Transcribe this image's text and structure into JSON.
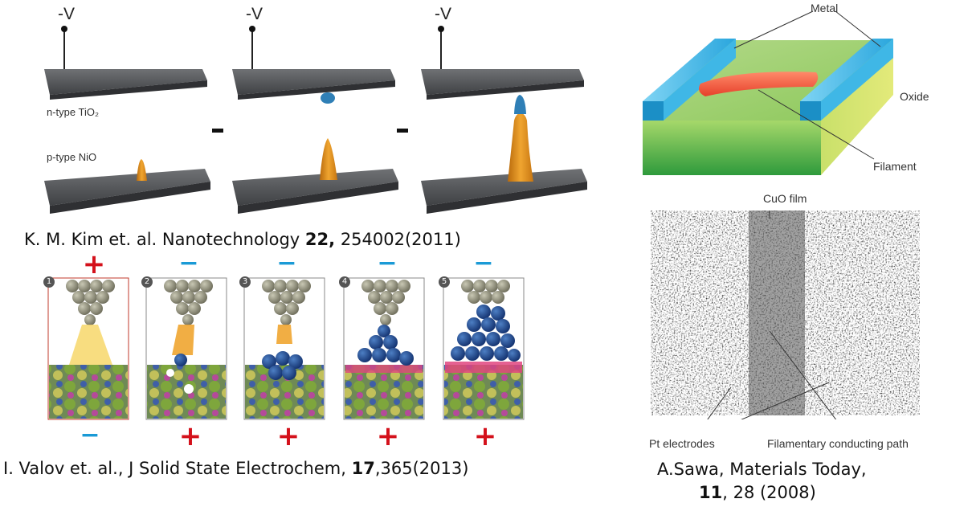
{
  "panel_kim": {
    "voltage_labels": [
      "-V",
      "-V",
      "-V"
    ],
    "layer_top": "n-type TiO₂",
    "layer_bottom": "p-type NiO",
    "citation": {
      "authors": "K. M. Kim et. al. Nanotechnology",
      "volume": "22,",
      "rest": "254002(2011)"
    }
  },
  "panel_valov": {
    "top_signs": [
      "+",
      "−",
      "−",
      "−",
      "−"
    ],
    "bottom_signs": [
      "−",
      "+",
      "+",
      "+",
      "+"
    ],
    "step_numbers": [
      "1",
      "2",
      "3",
      "4",
      "5"
    ],
    "citation": {
      "authors": "I. Valov et. al., J Solid State Electrochem,",
      "volume": "17",
      "rest": ",365(2013)"
    }
  },
  "panel_filament": {
    "label_metal": "Metal",
    "label_oxide": "Oxide",
    "label_filament": "Filament"
  },
  "panel_sawa": {
    "label_film": "CuO film",
    "label_electrodes": "Pt electrodes",
    "label_path": "Filamentary conducting path",
    "citation": {
      "line1": "A.Sawa, Materials Today,",
      "volume": "11",
      "rest": ", 28 (2008)"
    }
  },
  "colors": {
    "slab": "#55575a",
    "cone": "#e0901a",
    "tip_blue": "#2f7fb6",
    "metal_blue": "#2aa6dd",
    "oxide_green": "#7dc242",
    "filament_red": "#ee5a3a",
    "plus_red": "#d4111b",
    "minus_blue": "#1a9ad6"
  }
}
